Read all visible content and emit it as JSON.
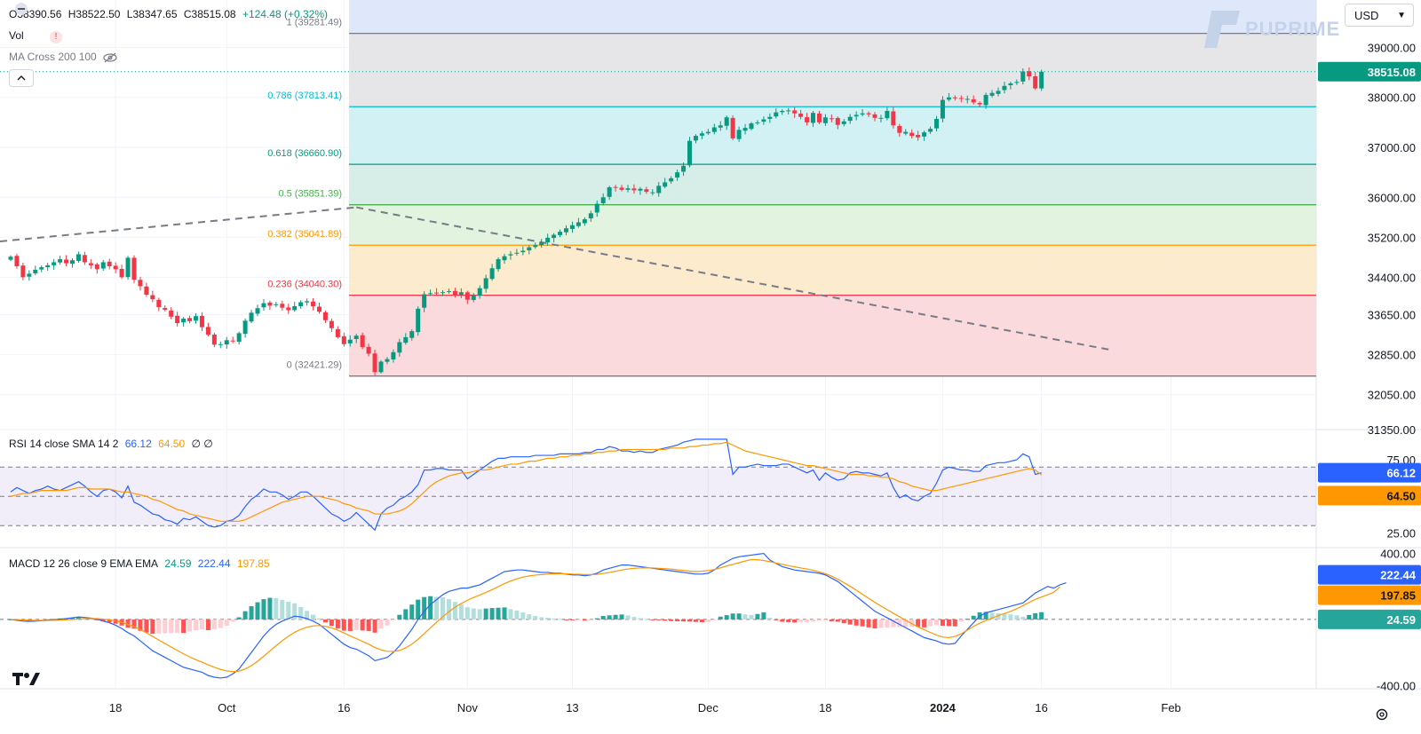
{
  "legend": {
    "open": "O38390.56",
    "high": "H38522.50",
    "low": "L38347.65",
    "close": "C38515.08",
    "change": "+124.48 (+0.32%)",
    "vol": "Vol",
    "ma": "MA Cross 200 100",
    "rsi_label": "RSI 14 close SMA 14 2",
    "rsi_val": "66.12",
    "rsi_sma": "64.50",
    "rsi_extra": "∅ ∅",
    "macd_label": "MACD 12 26 close 9 EMA EMA",
    "macd_hist": "24.59",
    "macd_macd": "222.44",
    "macd_signal": "197.85"
  },
  "currency": "USD",
  "watermark": "PUPRIME",
  "colors": {
    "up": "#089981",
    "down": "#f23645",
    "rsi": "#2962ff",
    "sma": "#ff9800",
    "macd": "#2962ff",
    "signal": "#ff9800"
  },
  "chart_data": [
    {
      "type": "candlestick",
      "title": "",
      "ylim": [
        31350,
        39950
      ],
      "price_ticks": [
        "39000.00",
        "38000.00",
        "37000.00",
        "36000.00",
        "35200.00",
        "34400.00",
        "33650.00",
        "32850.00",
        "32050.00",
        "31350.00"
      ],
      "price_tick_values": [
        39000,
        38000,
        37000,
        36000,
        35200,
        34400,
        33650,
        32850,
        32050,
        31350
      ],
      "x_ticks": [
        "18",
        "Oct",
        "16",
        "Nov",
        "13",
        "Dec",
        "18",
        "2024",
        "16",
        "Feb"
      ],
      "x_tick_index": [
        17,
        35,
        54,
        74,
        91,
        113,
        132,
        151,
        167,
        188
      ],
      "current_price": "38515.08",
      "fibonacci": [
        {
          "level": "1",
          "value": 39281.49,
          "label": "1 (39281.49)",
          "color": "#787b86",
          "fill": "#dce5fb"
        },
        {
          "level": "0.786",
          "value": 37813.41,
          "label": "0.786 (37813.41)",
          "color": "#00bcd4",
          "fill": "#e3e3e6"
        },
        {
          "level": "0.618",
          "value": 36660.9,
          "label": "0.618 (36660.90)",
          "color": "#089981",
          "fill": "#cdf0f4"
        },
        {
          "level": "0.5",
          "value": 35851.39,
          "label": "0.5 (35851.39)",
          "color": "#4caf50",
          "fill": "#d3ece6"
        },
        {
          "level": "0.382",
          "value": 35041.89,
          "label": "0.382 (35041.89)",
          "color": "#ff9800",
          "fill": "#dff2dc"
        },
        {
          "level": "0.236",
          "value": 34040.3,
          "label": "0.236 (34040.30)",
          "color": "#f23645",
          "fill": "#fde9c9"
        },
        {
          "level": "0",
          "value": 32421.29,
          "label": "0 (32421.29)",
          "color": "#787b86",
          "fill": "#fbd6d9"
        }
      ],
      "closes": [
        34810,
        34620,
        34400,
        34470,
        34550,
        34600,
        34640,
        34700,
        34760,
        34680,
        34740,
        34860,
        34700,
        34640,
        34560,
        34700,
        34620,
        34560,
        34400,
        34790,
        34350,
        34220,
        34050,
        33960,
        33800,
        33750,
        33610,
        33480,
        33570,
        33520,
        33620,
        33400,
        33250,
        33050,
        33060,
        33140,
        33120,
        33280,
        33530,
        33690,
        33780,
        33880,
        33830,
        33860,
        33790,
        33740,
        33820,
        33900,
        33920,
        33820,
        33710,
        33540,
        33380,
        33200,
        33060,
        33150,
        33230,
        33000,
        32870,
        32500,
        32710,
        32760,
        32900,
        33100,
        33200,
        33320,
        33770,
        34060,
        34080,
        34090,
        34100,
        34120,
        34050,
        34100,
        33950,
        34040,
        34180,
        34380,
        34580,
        34760,
        34820,
        34860,
        34890,
        34930,
        35000,
        35040,
        35100,
        35190,
        35250,
        35310,
        35380,
        35440,
        35500,
        35560,
        35680,
        35870,
        36000,
        36200,
        36190,
        36150,
        36180,
        36140,
        36170,
        36110,
        36100,
        36230,
        36300,
        36380,
        36500,
        36630,
        37130,
        37230,
        37280,
        37310,
        37400,
        37440,
        37600,
        37180,
        37350,
        37390,
        37480,
        37500,
        37560,
        37610,
        37700,
        37730,
        37740,
        37680,
        37610,
        37500,
        37690,
        37500,
        37600,
        37570,
        37450,
        37520,
        37610,
        37650,
        37680,
        37660,
        37590,
        37590,
        37730,
        37440,
        37290,
        37310,
        37230,
        37200,
        37300,
        37370,
        37570,
        37950,
        38000,
        37990,
        37970,
        37970,
        37900,
        37860,
        38050,
        38090,
        38130,
        38230,
        38280,
        38310,
        38520,
        38420,
        38180,
        38515
      ],
      "rsi": [
        53,
        56,
        54,
        52,
        54,
        55,
        57,
        55,
        54,
        56,
        58,
        60,
        57,
        53,
        50,
        54,
        55,
        53,
        49,
        57,
        46,
        44,
        41,
        38,
        37,
        34,
        33,
        31,
        35,
        34,
        36,
        33,
        30,
        29,
        30,
        33,
        34,
        37,
        43,
        48,
        51,
        55,
        53,
        53,
        51,
        48,
        50,
        53,
        53,
        50,
        46,
        42,
        38,
        36,
        33,
        35,
        39,
        35,
        31,
        27,
        38,
        42,
        44,
        48,
        50,
        53,
        58,
        68,
        68,
        69,
        69,
        68,
        68,
        68,
        62,
        65,
        68,
        71,
        74,
        76,
        76,
        77,
        77,
        77,
        77,
        78,
        78,
        78,
        78,
        79,
        79,
        79,
        79,
        80,
        80,
        82,
        82,
        84,
        83,
        81,
        81,
        80,
        81,
        80,
        80,
        82,
        83,
        84,
        85,
        87,
        88,
        89,
        89,
        89,
        89,
        89,
        89,
        65,
        70,
        70,
        71,
        72,
        71,
        71,
        71,
        72,
        72,
        70,
        68,
        66,
        68,
        61,
        66,
        63,
        61,
        62,
        66,
        67,
        66,
        66,
        65,
        64,
        66,
        56,
        49,
        51,
        48,
        47,
        50,
        52,
        59,
        68,
        70,
        69,
        68,
        68,
        67,
        67,
        71,
        72,
        73,
        73,
        74,
        75,
        79,
        77,
        65,
        66.12
      ],
      "rsi_sma": [
        50,
        51,
        52,
        52,
        53,
        54,
        54,
        54,
        54,
        54,
        55,
        56,
        56,
        55,
        55,
        55,
        55,
        54,
        53,
        53,
        52,
        51,
        50,
        48,
        47,
        45,
        43,
        41,
        40,
        38,
        37,
        36,
        35,
        34,
        33,
        33,
        33,
        33,
        34,
        36,
        38,
        40,
        42,
        44,
        46,
        47,
        48,
        49,
        50,
        50,
        50,
        49,
        48,
        47,
        45,
        44,
        42,
        41,
        40,
        38,
        38,
        38,
        39,
        40,
        42,
        45,
        49,
        53,
        57,
        60,
        62,
        64,
        65,
        66,
        66,
        67,
        68,
        68,
        69,
        70,
        71,
        72,
        72,
        73,
        74,
        74,
        75,
        76,
        76,
        77,
        77,
        78,
        78,
        79,
        79,
        80,
        80,
        81,
        81,
        82,
        82,
        82,
        82,
        82,
        82,
        82,
        82,
        83,
        83,
        83,
        84,
        84,
        85,
        85,
        86,
        86,
        87,
        85,
        83,
        81,
        80,
        79,
        78,
        77,
        76,
        75,
        74,
        73,
        72,
        71,
        71,
        70,
        69,
        68,
        67,
        66,
        65,
        65,
        65,
        64,
        64,
        63,
        63,
        62,
        60,
        59,
        57,
        56,
        55,
        54,
        54,
        55,
        56,
        57,
        58,
        59,
        60,
        61,
        62,
        63,
        64,
        65,
        66,
        67,
        68,
        69,
        68,
        64.5
      ],
      "rsi_ylim": [
        15,
        95
      ],
      "rsi_ticks": [
        "75.00",
        "25.00"
      ],
      "rsi_tick_values": [
        75,
        25
      ],
      "macd": [
        0,
        -5,
        -10,
        -12,
        -10,
        -8,
        -5,
        -2,
        2,
        5,
        10,
        15,
        12,
        8,
        2,
        -10,
        -20,
        -35,
        -55,
        -80,
        -100,
        -130,
        -160,
        -190,
        -210,
        -230,
        -250,
        -270,
        -290,
        -300,
        -310,
        -320,
        -340,
        -350,
        -355,
        -350,
        -330,
        -300,
        -250,
        -200,
        -150,
        -100,
        -60,
        -30,
        -10,
        5,
        20,
        15,
        5,
        -10,
        -30,
        -60,
        -90,
        -120,
        -150,
        -170,
        -180,
        -200,
        -220,
        -250,
        -240,
        -230,
        -200,
        -160,
        -110,
        -60,
        0,
        50,
        90,
        120,
        150,
        170,
        180,
        190,
        190,
        200,
        210,
        230,
        250,
        270,
        290,
        295,
        300,
        300,
        295,
        290,
        285,
        285,
        280,
        280,
        275,
        270,
        270,
        265,
        270,
        280,
        300,
        310,
        320,
        330,
        330,
        325,
        320,
        315,
        310,
        305,
        300,
        295,
        290,
        285,
        280,
        275,
        275,
        280,
        300,
        330,
        350,
        370,
        380,
        385,
        390,
        395,
        400,
        360,
        340,
        320,
        310,
        300,
        295,
        290,
        285,
        280,
        270,
        250,
        230,
        200,
        170,
        140,
        110,
        80,
        50,
        30,
        10,
        -10,
        -30,
        -50,
        -70,
        -90,
        -110,
        -120,
        -130,
        -145,
        -150,
        -145,
        -100,
        -60,
        -20,
        20,
        40,
        50,
        60,
        70,
        80,
        90,
        100,
        130,
        160,
        180,
        200,
        190,
        210,
        222.44
      ],
      "signal": [
        0,
        -1,
        -3,
        -5,
        -6,
        -6,
        -6,
        -5,
        -4,
        -2,
        0,
        3,
        5,
        6,
        5,
        2,
        -2,
        -9,
        -18,
        -30,
        -44,
        -61,
        -81,
        -103,
        -125,
        -146,
        -167,
        -188,
        -208,
        -227,
        -244,
        -259,
        -275,
        -290,
        -303,
        -312,
        -316,
        -313,
        -300,
        -280,
        -254,
        -223,
        -191,
        -159,
        -129,
        -102,
        -78,
        -60,
        -47,
        -39,
        -37,
        -42,
        -51,
        -65,
        -82,
        -100,
        -116,
        -133,
        -150,
        -170,
        -184,
        -193,
        -194,
        -188,
        -172,
        -150,
        -120,
        -86,
        -51,
        -17,
        16,
        47,
        74,
        97,
        116,
        133,
        148,
        164,
        181,
        199,
        217,
        233,
        246,
        257,
        264,
        269,
        272,
        275,
        276,
        277,
        277,
        275,
        274,
        272,
        272,
        273,
        279,
        285,
        292,
        300,
        306,
        310,
        312,
        313,
        312,
        310,
        308,
        305,
        301,
        297,
        293,
        290,
        292,
        296,
        303,
        313,
        324,
        334,
        344,
        354,
        363,
        362,
        357,
        350,
        342,
        334,
        326,
        319,
        312,
        306,
        298,
        288,
        277,
        262,
        244,
        223,
        201,
        177,
        152,
        128,
        104,
        81,
        59,
        37,
        16,
        -5,
        -26,
        -45,
        -62,
        -79,
        -95,
        -107,
        -110,
        -103,
        -87,
        -64,
        -42,
        -23,
        -6,
        9,
        23,
        36,
        49,
        65,
        84,
        103,
        122,
        136,
        150,
        165,
        197.85
      ],
      "macd_ylim": [
        -420,
        430
      ],
      "macd_ticks": [
        "400.00",
        "-400.00"
      ],
      "macd_tick_values": [
        400,
        -400
      ],
      "yellow_legend_values": [
        "64.50",
        "197.85"
      ]
    }
  ]
}
